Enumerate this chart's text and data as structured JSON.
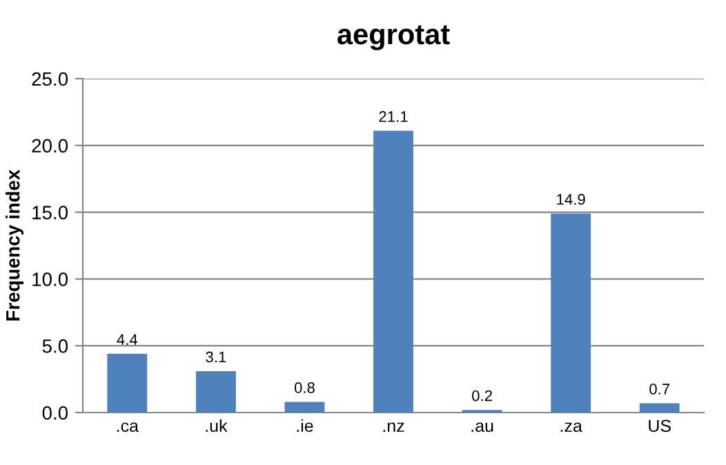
{
  "chart_data": {
    "type": "bar",
    "title": "aegrotat",
    "ylabel": "Frequency index",
    "categories": [
      ".ca",
      ".uk",
      ".ie",
      ".nz",
      ".au",
      ".za",
      "US"
    ],
    "values": [
      4.4,
      3.1,
      0.8,
      21.1,
      0.2,
      14.9,
      0.7
    ],
    "color": "#4f81bd",
    "ylim": [
      0,
      25
    ],
    "yticks": [
      {
        "value": 0,
        "label": "0.0"
      },
      {
        "value": 5,
        "label": "5.0"
      },
      {
        "value": 10,
        "label": "10.0"
      },
      {
        "value": 15,
        "label": "15.0"
      },
      {
        "value": 20,
        "label": "20.0"
      },
      {
        "value": 25,
        "label": "25.0"
      }
    ],
    "grid": "y",
    "data_labels": true
  }
}
